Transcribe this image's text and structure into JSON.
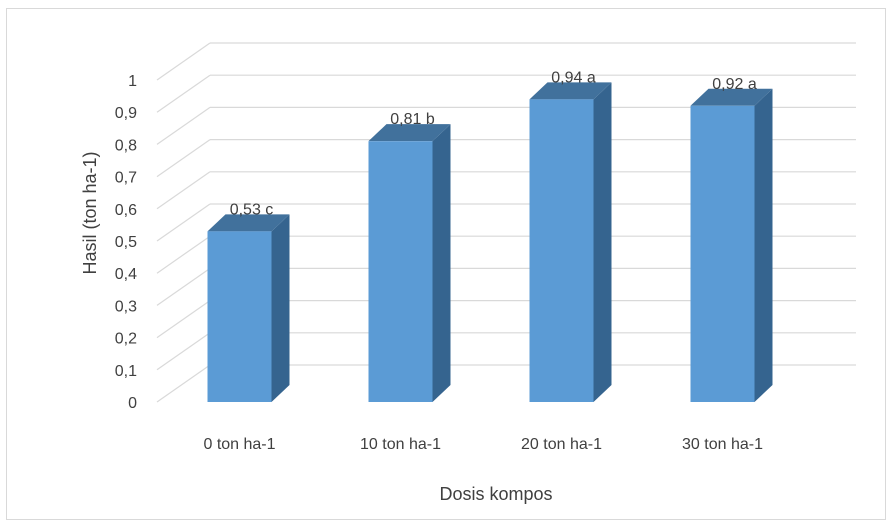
{
  "chart_data": {
    "type": "bar",
    "style": "3d-column",
    "categories": [
      "0 ton ha-1",
      "10 ton ha-1",
      "20 ton ha-1",
      "30 ton ha-1"
    ],
    "values": [
      0.53,
      0.81,
      0.94,
      0.92
    ],
    "data_labels": [
      "0,53 c",
      "0,81 b",
      "0,94 a",
      "0,92 a"
    ],
    "xlabel": "Dosis  kompos",
    "ylabel": "Hasil  (ton ha-1)",
    "ylim": [
      0,
      1
    ],
    "yticks": [
      "0",
      "0,1",
      "0,2",
      "0,3",
      "0,4",
      "0,5",
      "0,6",
      "0,7",
      "0,8",
      "0,9",
      "1"
    ],
    "grid": true,
    "legend": "none",
    "colors": {
      "front": "#5b9bd5",
      "side": "#35648f",
      "top": "#41719c",
      "grid": "#d9d9d9",
      "text": "#404040"
    }
  }
}
